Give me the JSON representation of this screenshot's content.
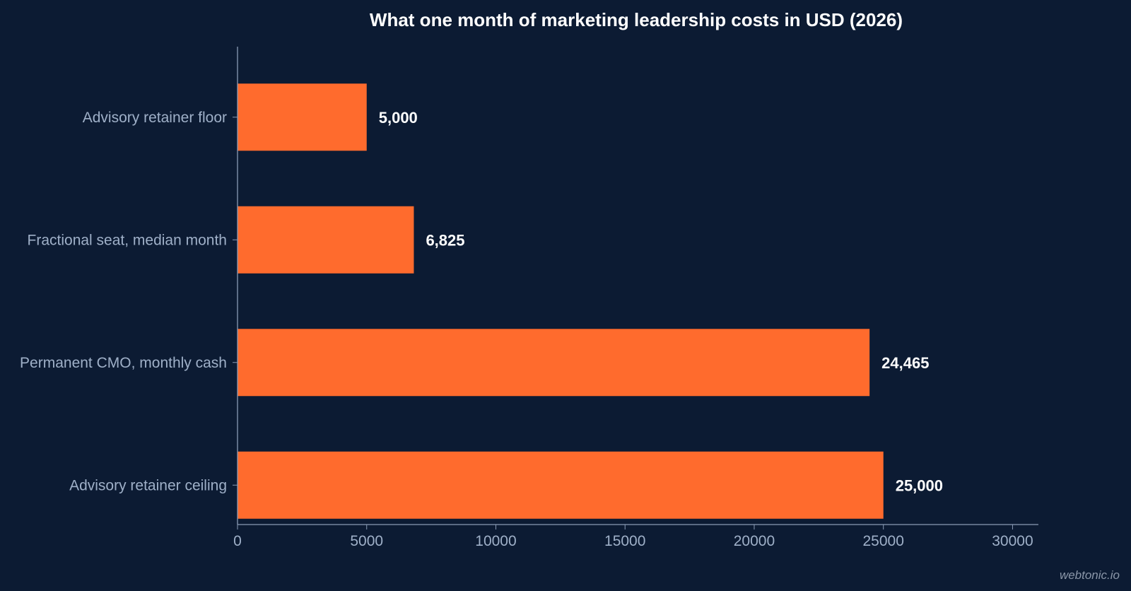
{
  "chart_data": {
    "type": "bar",
    "orientation": "horizontal",
    "title": "What one month of marketing leadership costs in USD (2026)",
    "categories": [
      "Advisory retainer floor",
      "Fractional seat, median month",
      "Permanent CMO, monthly cash",
      "Advisory retainer ceiling"
    ],
    "values": [
      5000,
      6825,
      24465,
      25000
    ],
    "value_labels": [
      "5,000",
      "6,825",
      "24,465",
      "25,000"
    ],
    "xlim": [
      0,
      31000
    ],
    "x_ticks": [
      0,
      5000,
      10000,
      15000,
      20000,
      25000,
      30000
    ],
    "x_tick_labels": [
      "0",
      "5000",
      "10000",
      "15000",
      "20000",
      "25000",
      "30000"
    ],
    "xlabel": "",
    "ylabel": "",
    "grid": false,
    "legend": "none",
    "bar_color": "#ff6b2d",
    "background_color": "#0c1b33",
    "axis_color": "#8a9bb5"
  },
  "watermark": "webtonic.io"
}
